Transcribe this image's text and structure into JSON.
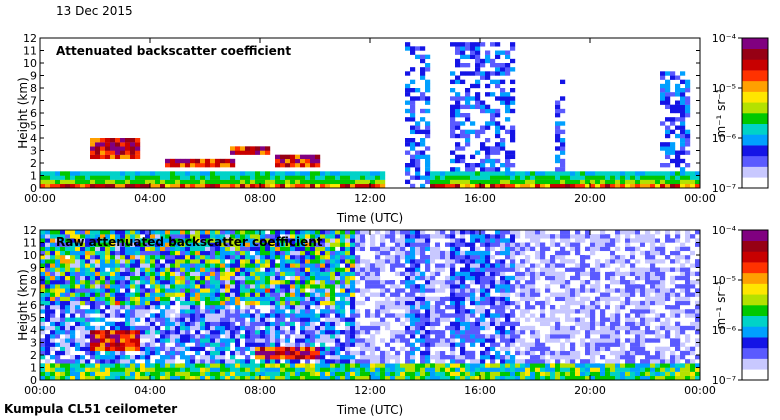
{
  "date": "13 Dec 2015",
  "footer": "Kumpula CL51 ceilometer",
  "colors": {
    "colormap": [
      "#ffffff",
      "#c8c8ff",
      "#5a5aff",
      "#1414e6",
      "#00a0ff",
      "#00d2c8",
      "#00c800",
      "#b4e100",
      "#ffe600",
      "#ffa000",
      "#ff3200",
      "#c80000",
      "#960014",
      "#800080"
    ],
    "background": "#ffffff"
  },
  "chart_data": [
    {
      "type": "heatmap",
      "title": "Attenuated backscatter coefficient",
      "xlabel": "Time (UTC)",
      "ylabel": "Height (km)",
      "x_ticks": [
        "00:00",
        "04:00",
        "08:00",
        "12:00",
        "16:00",
        "20:00",
        "00:00"
      ],
      "xlim_hours": [
        0,
        24
      ],
      "y_ticks": [
        "0",
        "1",
        "2",
        "3",
        "4",
        "5",
        "6",
        "7",
        "8",
        "9",
        "10",
        "11",
        "12"
      ],
      "ylim_km": [
        0,
        12
      ],
      "colorbar": {
        "label": "m⁻¹ sr⁻¹",
        "scale": "log",
        "range": [
          1e-07,
          0.0001
        ],
        "tick_labels": [
          "10⁻⁴",
          "10⁻⁵",
          "10⁻⁶",
          "10⁻⁷"
        ]
      },
      "features": {
        "boundary_layer_top_km": 1.5,
        "cloud_layers": [
          {
            "start_h": 1.8,
            "end_h": 3.6,
            "base_km": 2.5,
            "top_km": 3.9
          },
          {
            "start_h": 4.6,
            "end_h": 7.0,
            "base_km": 1.8,
            "top_km": 2.4
          },
          {
            "start_h": 7.0,
            "end_h": 8.4,
            "base_km": 2.6,
            "top_km": 3.2
          },
          {
            "start_h": 8.6,
            "end_h": 10.2,
            "base_km": 1.6,
            "top_km": 2.6
          }
        ],
        "precip_columns": [
          {
            "start_h": 13.3,
            "end_h": 14.1,
            "top_km": 11.5
          },
          {
            "start_h": 15.0,
            "end_h": 17.2,
            "top_km": 11.5
          },
          {
            "start_h": 18.7,
            "end_h": 19.0,
            "top_km": 9.0
          },
          {
            "start_h": 22.6,
            "end_h": 23.7,
            "top_km": 9.2
          }
        ]
      }
    },
    {
      "type": "heatmap",
      "title": "Raw attenuated backscatter coefficient",
      "xlabel": "Time (UTC)",
      "ylabel": "Height (km)",
      "x_ticks": [
        "00:00",
        "04:00",
        "08:00",
        "12:00",
        "16:00",
        "20:00",
        "00:00"
      ],
      "xlim_hours": [
        0,
        24
      ],
      "y_ticks": [
        "0",
        "1",
        "2",
        "3",
        "4",
        "5",
        "6",
        "7",
        "8",
        "9",
        "10",
        "11",
        "12"
      ],
      "ylim_km": [
        0,
        12
      ],
      "colorbar": {
        "label": "m⁻¹ sr⁻¹",
        "scale": "log",
        "range": [
          1e-07,
          0.0001
        ],
        "tick_labels": [
          "10⁻⁴",
          "10⁻⁵",
          "10⁻⁶",
          "10⁻⁷"
        ]
      },
      "features": {
        "noise_level": "high before 12:00, low after",
        "cloud_layers": [
          {
            "start_h": 1.8,
            "end_h": 3.6,
            "base_km": 2.5,
            "top_km": 3.9
          },
          {
            "start_h": 7.8,
            "end_h": 10.2,
            "base_km": 1.6,
            "top_km": 2.6
          }
        ],
        "precip_columns": [
          {
            "start_h": 13.3,
            "end_h": 14.1,
            "top_km": 12
          },
          {
            "start_h": 15.0,
            "end_h": 17.2,
            "top_km": 12
          }
        ]
      }
    }
  ]
}
